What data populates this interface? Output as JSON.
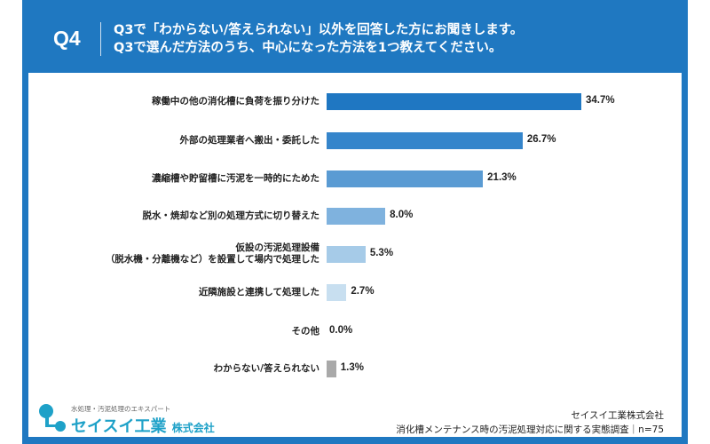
{
  "header": {
    "qnum": "Q4",
    "line1": "Q3で「わからない/答えられない」以外を回答した方にお聞きします。",
    "line2": "Q3で選んだ方法のうち、中心になった方法を1つ教えてください。"
  },
  "chart_data": {
    "type": "bar",
    "orientation": "horizontal",
    "unit": "%",
    "xlim": [
      0,
      34.7
    ],
    "categories": [
      "稼働中の他の消化槽に負荷を振り分けた",
      "外部の処理業者へ搬出・委託した",
      "濃縮槽や貯留槽に汚泥を一時的にためた",
      "脱水・焼却など別の処理方式に切り替えた",
      "仮設の汚泥処理設備\n（脱水機・分離機など）を設置して場内で処理した",
      "近隣施設と連携して処理した",
      "その他",
      "わからない/答えられない"
    ],
    "values": [
      34.7,
      26.7,
      21.3,
      8.0,
      5.3,
      2.7,
      0.0,
      1.3
    ],
    "labels": [
      "34.7%",
      "26.7%",
      "21.3%",
      "8.0%",
      "5.3%",
      "2.7%",
      "0.0%",
      "1.3%"
    ],
    "colors": [
      "#1f77c2",
      "#3585cb",
      "#5a9bd3",
      "#7fb2de",
      "#a6cbe8",
      "#c8dff0",
      "#c8dff0",
      "#a9a9a9"
    ]
  },
  "footer": {
    "tagline": "水処理・汚泥処理のエキスパート",
    "company_main": "セイスイ工業",
    "company_suffix": "株式会社",
    "source_company": "セイスイ工業株式会社",
    "source_survey": "消化槽メンテナンス時の汚泥処理対応に関する実態調査｜n=75"
  }
}
